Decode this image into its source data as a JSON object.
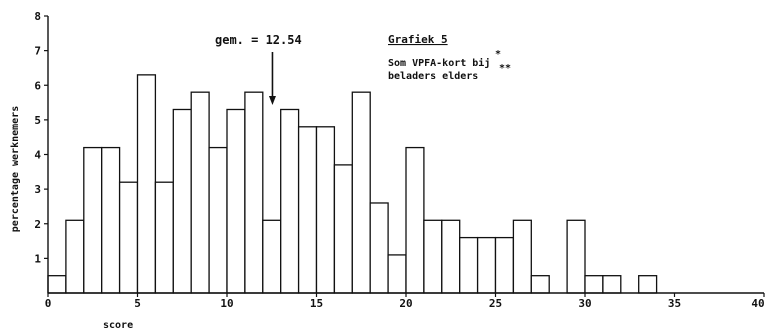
{
  "chart_data": {
    "type": "bar",
    "title": "Grafiek 5",
    "subtitle_lines": [
      "Som VPFA-kort bij",
      "beladers elders"
    ],
    "subtitle_marks": [
      "*",
      "**"
    ],
    "xlabel": "score",
    "ylabel": "percentage werknemers",
    "xlim": [
      0,
      40
    ],
    "ylim": [
      0,
      8
    ],
    "xticks": [
      0,
      5,
      10,
      15,
      20,
      25,
      30,
      35,
      40
    ],
    "yticks": [
      1,
      2,
      3,
      4,
      5,
      6,
      7,
      8
    ],
    "grid": false,
    "bar_width": 1,
    "x": [
      0,
      1,
      2,
      3,
      4,
      5,
      6,
      7,
      8,
      9,
      10,
      11,
      12,
      13,
      14,
      15,
      16,
      17,
      18,
      19,
      20,
      21,
      22,
      23,
      24,
      25,
      26,
      27,
      28,
      29,
      30,
      31,
      32,
      33
    ],
    "values": [
      0.5,
      2.1,
      4.2,
      4.2,
      3.2,
      6.3,
      3.2,
      5.3,
      5.8,
      4.2,
      5.3,
      5.8,
      2.1,
      5.3,
      4.8,
      4.8,
      3.7,
      5.8,
      2.6,
      1.1,
      4.2,
      2.1,
      2.1,
      1.6,
      1.6,
      1.6,
      2.1,
      0.5,
      0,
      2.1,
      0.5,
      0.5,
      0,
      0.5
    ],
    "annotation": {
      "text": "gem. = 12.54",
      "x": 12.54
    }
  }
}
